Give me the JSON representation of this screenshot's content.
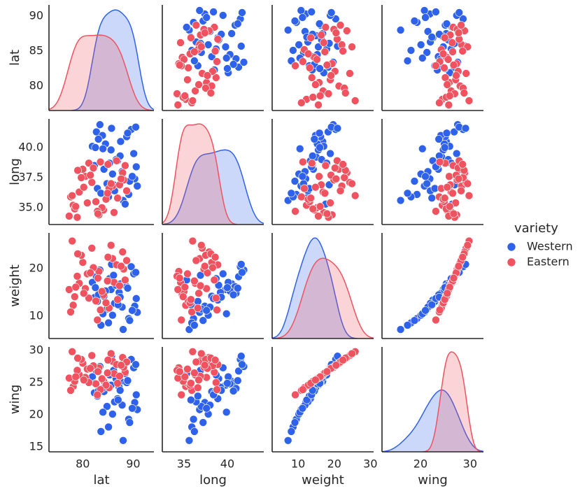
{
  "chart_data": {
    "type": "pairplot",
    "legend_title": "variety",
    "variables": [
      {
        "label": "lat",
        "xlim": [
          73.3,
          94.1
        ],
        "xticks": [
          80,
          90
        ],
        "ylim": [
          76.5,
          91.6
        ],
        "yticks": [
          80,
          85,
          90
        ]
      },
      {
        "label": "long",
        "xlim": [
          32.5,
          44.2
        ],
        "xticks": [
          35,
          40
        ],
        "ylim": [
          33.6,
          42.38
        ],
        "yticks": [
          {
            "value": 35,
            "label": "35.0"
          },
          37.5,
          {
            "value": 40,
            "label": "40.0"
          }
        ]
      },
      {
        "label": "weight",
        "xlim": [
          2.8,
          30.9
        ],
        "xticks": [
          10,
          20,
          30
        ],
        "ylim": [
          5.3,
          27.5
        ],
        "yticks": [
          10,
          20
        ]
      },
      {
        "label": "wing",
        "xlim": [
          12.25,
          32.7
        ],
        "xticks": [
          20,
          30
        ],
        "ylim": [
          14.24,
          30.54
        ],
        "yticks": [
          15,
          20,
          25,
          30
        ]
      }
    ],
    "series": [
      {
        "name": "Western",
        "color": "#2f62ea",
        "lat": [
          84.2,
          87.5,
          89.1,
          82.7,
          90.3,
          85.6,
          88.0,
          83.4,
          86.9,
          90.8,
          81.9,
          84.8,
          87.2,
          89.6,
          85.1,
          82.3,
          88.7,
          86.3,
          90.1,
          83.9,
          85.9,
          88.4,
          84.5,
          87.8,
          90.5,
          82.9,
          86.6,
          89.3,
          83.1,
          85.3,
          87.0,
          88.9,
          84.0,
          86.1,
          90.6,
          82.5,
          89.8,
          85.7,
          87.4,
          83.6
        ],
        "long": [
          38.2,
          40.5,
          36.1,
          41.3,
          37.4,
          39.8,
          35.6,
          41.9,
          38.9,
          36.8,
          40.1,
          37.0,
          39.2,
          41.5,
          35.9,
          38.5,
          40.9,
          36.4,
          39.5,
          41.0,
          37.8,
          35.3,
          40.3,
          38.0,
          41.7,
          36.6,
          39.0,
          37.2,
          40.7,
          38.7,
          35.8,
          41.2,
          39.9,
          36.9,
          38.4,
          40.0,
          37.6,
          41.6,
          39.3,
          36.2
        ],
        "weight": [
          14.2,
          16.8,
          9.5,
          18.3,
          12.1,
          15.6,
          7.2,
          19.7,
          13.4,
          10.8,
          17.1,
          11.5,
          15.0,
          20.4,
          8.6,
          13.9,
          16.2,
          12.7,
          18.9,
          14.8,
          10.2,
          17.6,
          15.3,
          11.9,
          19.2,
          13.1,
          16.5,
          9.1,
          14.5,
          17.9,
          12.4,
          15.9,
          10.5,
          18.6,
          13.7,
          16.0,
          11.2,
          20.9,
          14.0,
          8.1
        ],
        "wing": [
          23.6,
          25.2,
          19.3,
          26.8,
          21.9,
          24.6,
          16.0,
          27.5,
          22.5,
          20.8,
          25.9,
          21.3,
          24.3,
          28.6,
          18.1,
          23.4,
          25.0,
          22.0,
          27.3,
          24.1,
          20.1,
          26.4,
          24.8,
          21.5,
          27.8,
          22.9,
          25.6,
          18.8,
          23.7,
          26.2,
          22.3,
          25.3,
          20.4,
          26.9,
          23.1,
          24.9,
          21.0,
          29.1,
          23.8,
          17.4
        ]
      },
      {
        "name": "Eastern",
        "color": "#f0525f",
        "lat": [
          78.1,
          80.5,
          83.2,
          85.9,
          88.4,
          77.6,
          81.8,
          84.1,
          86.7,
          79.3,
          82.6,
          87.9,
          78.9,
          85.2,
          80.0,
          83.8,
          88.1,
          77.9,
          81.2,
          86.2,
          79.7,
          84.6,
          87.3,
          82.1,
          78.4,
          85.6,
          80.9,
          83.5,
          88.7,
          77.3,
          81.5,
          86.9,
          79.0,
          84.9,
          82.9,
          87.6,
          78.6,
          85.0,
          80.2,
          83.0
        ],
        "long": [
          35.2,
          37.6,
          34.4,
          36.8,
          38.5,
          35.9,
          37.1,
          34.8,
          38.9,
          36.3,
          35.5,
          37.9,
          34.2,
          36.6,
          38.2,
          35.0,
          37.3,
          36.0,
          38.7,
          34.6,
          37.5,
          35.7,
          36.9,
          38.3,
          34.9,
          37.0,
          35.4,
          38.8,
          36.4,
          34.3,
          37.7,
          35.8,
          38.1,
          36.2,
          34.7,
          37.4,
          35.1,
          38.6,
          36.7,
          34.5
        ],
        "weight": [
          12.3,
          15.8,
          19.4,
          22.1,
          17.6,
          10.9,
          24.3,
          14.5,
          20.8,
          16.9,
          13.2,
          23.5,
          18.4,
          11.7,
          21.3,
          15.2,
          19.9,
          25.8,
          13.8,
          17.1,
          22.8,
          12.8,
          16.4,
          20.2,
          14.1,
          24.9,
          18.9,
          11.3,
          21.7,
          15.6,
          19.1,
          13.5,
          23.1,
          17.4,
          9.2,
          20.5,
          16.1,
          22.4,
          14.8,
          18.0
        ],
        "wing": [
          24.4,
          25.8,
          27.3,
          28.3,
          26.6,
          23.8,
          29.2,
          25.3,
          27.8,
          26.2,
          24.8,
          28.9,
          26.9,
          24.2,
          28.0,
          25.6,
          27.4,
          29.8,
          25.0,
          26.4,
          28.6,
          24.6,
          26.0,
          27.6,
          25.2,
          29.5,
          27.1,
          23.9,
          28.2,
          25.7,
          27.2,
          24.9,
          28.8,
          26.5,
          23.1,
          27.7,
          25.9,
          28.5,
          25.4,
          26.7
        ]
      }
    ]
  }
}
